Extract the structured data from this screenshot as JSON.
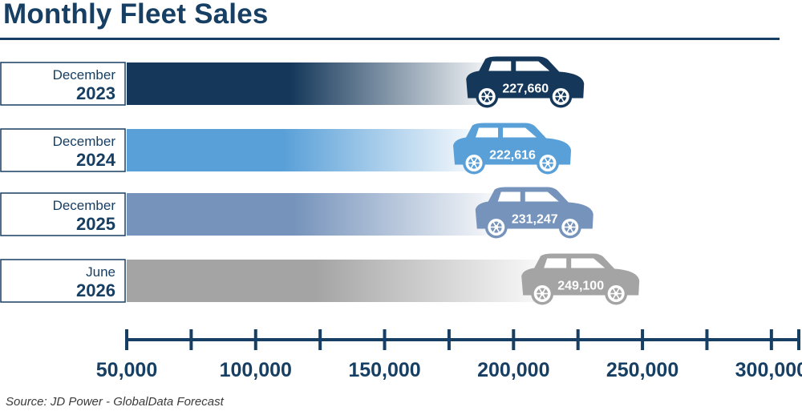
{
  "title": "Monthly Fleet Sales",
  "source": "Source:  JD Power - GlobalData Forecast",
  "colors": {
    "title": "#173f63",
    "axis": "#173f63",
    "label_text": "#173f63",
    "bar_2023": "#14375a",
    "bar_2024": "#5aa0d8",
    "bar_2025": "#7693bb",
    "bar_2026": "#a4a4a4"
  },
  "chart_data": {
    "type": "bar",
    "orientation": "horizontal",
    "categories": [
      {
        "month": "December",
        "year": "2023"
      },
      {
        "month": "December",
        "year": "2024"
      },
      {
        "month": "December",
        "year": "2025"
      },
      {
        "month": "June",
        "year": "2026"
      }
    ],
    "values": [
      227660,
      222616,
      231247,
      249100
    ],
    "value_labels": [
      "227,660",
      "222,616",
      "231,247",
      "249,100"
    ],
    "bar_colors": [
      "#14375a",
      "#5aa0d8",
      "#7693bb",
      "#a4a4a4"
    ],
    "bar_style": "gradient fading to white, ending in car icon",
    "xlim": [
      50000,
      310000
    ],
    "xticks_major": [
      50000,
      100000,
      150000,
      200000,
      250000,
      300000
    ],
    "xtick_labels": [
      "50,000",
      "100,000",
      "150,000",
      "200,000",
      "250,000",
      "300,000"
    ],
    "xticks_minor": [
      75000,
      125000,
      175000,
      225000,
      275000
    ],
    "grid": false,
    "legend": "none"
  }
}
